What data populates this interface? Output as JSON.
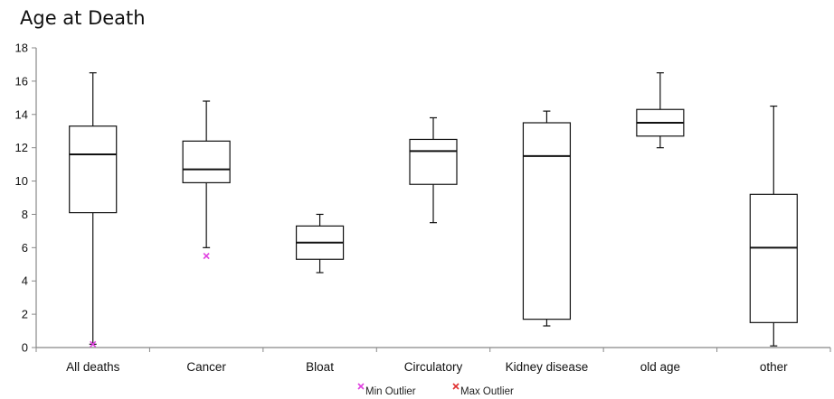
{
  "chart_data": {
    "type": "boxplot",
    "title": "Age at Death",
    "xlabel": "",
    "ylabel": "",
    "ylim": [
      0,
      18
    ],
    "yticks": [
      0,
      2,
      4,
      6,
      8,
      10,
      12,
      14,
      16,
      18
    ],
    "grid": false,
    "legend_position": "bottom",
    "categories": [
      "All deaths",
      "Cancer",
      "Bloat",
      "Circulatory",
      "Kidney disease",
      "old age",
      "other"
    ],
    "boxes": [
      {
        "min": 0.2,
        "q1": 8.1,
        "median": 11.6,
        "q3": 13.3,
        "max": 16.5,
        "min_outlier": 0.2
      },
      {
        "min": 6.0,
        "q1": 9.9,
        "median": 10.7,
        "q3": 12.4,
        "max": 14.8,
        "min_outlier": 5.5
      },
      {
        "min": 4.5,
        "q1": 5.3,
        "median": 6.3,
        "q3": 7.3,
        "max": 8.0
      },
      {
        "min": 7.5,
        "q1": 9.8,
        "median": 11.8,
        "q3": 12.5,
        "max": 13.8
      },
      {
        "min": 1.3,
        "q1": 1.7,
        "median": 11.5,
        "q3": 13.5,
        "max": 14.2
      },
      {
        "min": 12.0,
        "q1": 12.7,
        "median": 13.5,
        "q3": 14.3,
        "max": 16.5
      },
      {
        "min": 0.1,
        "q1": 1.5,
        "median": 6.0,
        "q3": 9.2,
        "max": 14.5
      }
    ],
    "legend": [
      {
        "label": "Min Outlier",
        "marker": "x",
        "color": "#e040e0"
      },
      {
        "label": "Max Outlier",
        "marker": "x",
        "color": "#e03030"
      }
    ],
    "colors": {
      "box": "#111111",
      "axis": "#888888"
    }
  }
}
